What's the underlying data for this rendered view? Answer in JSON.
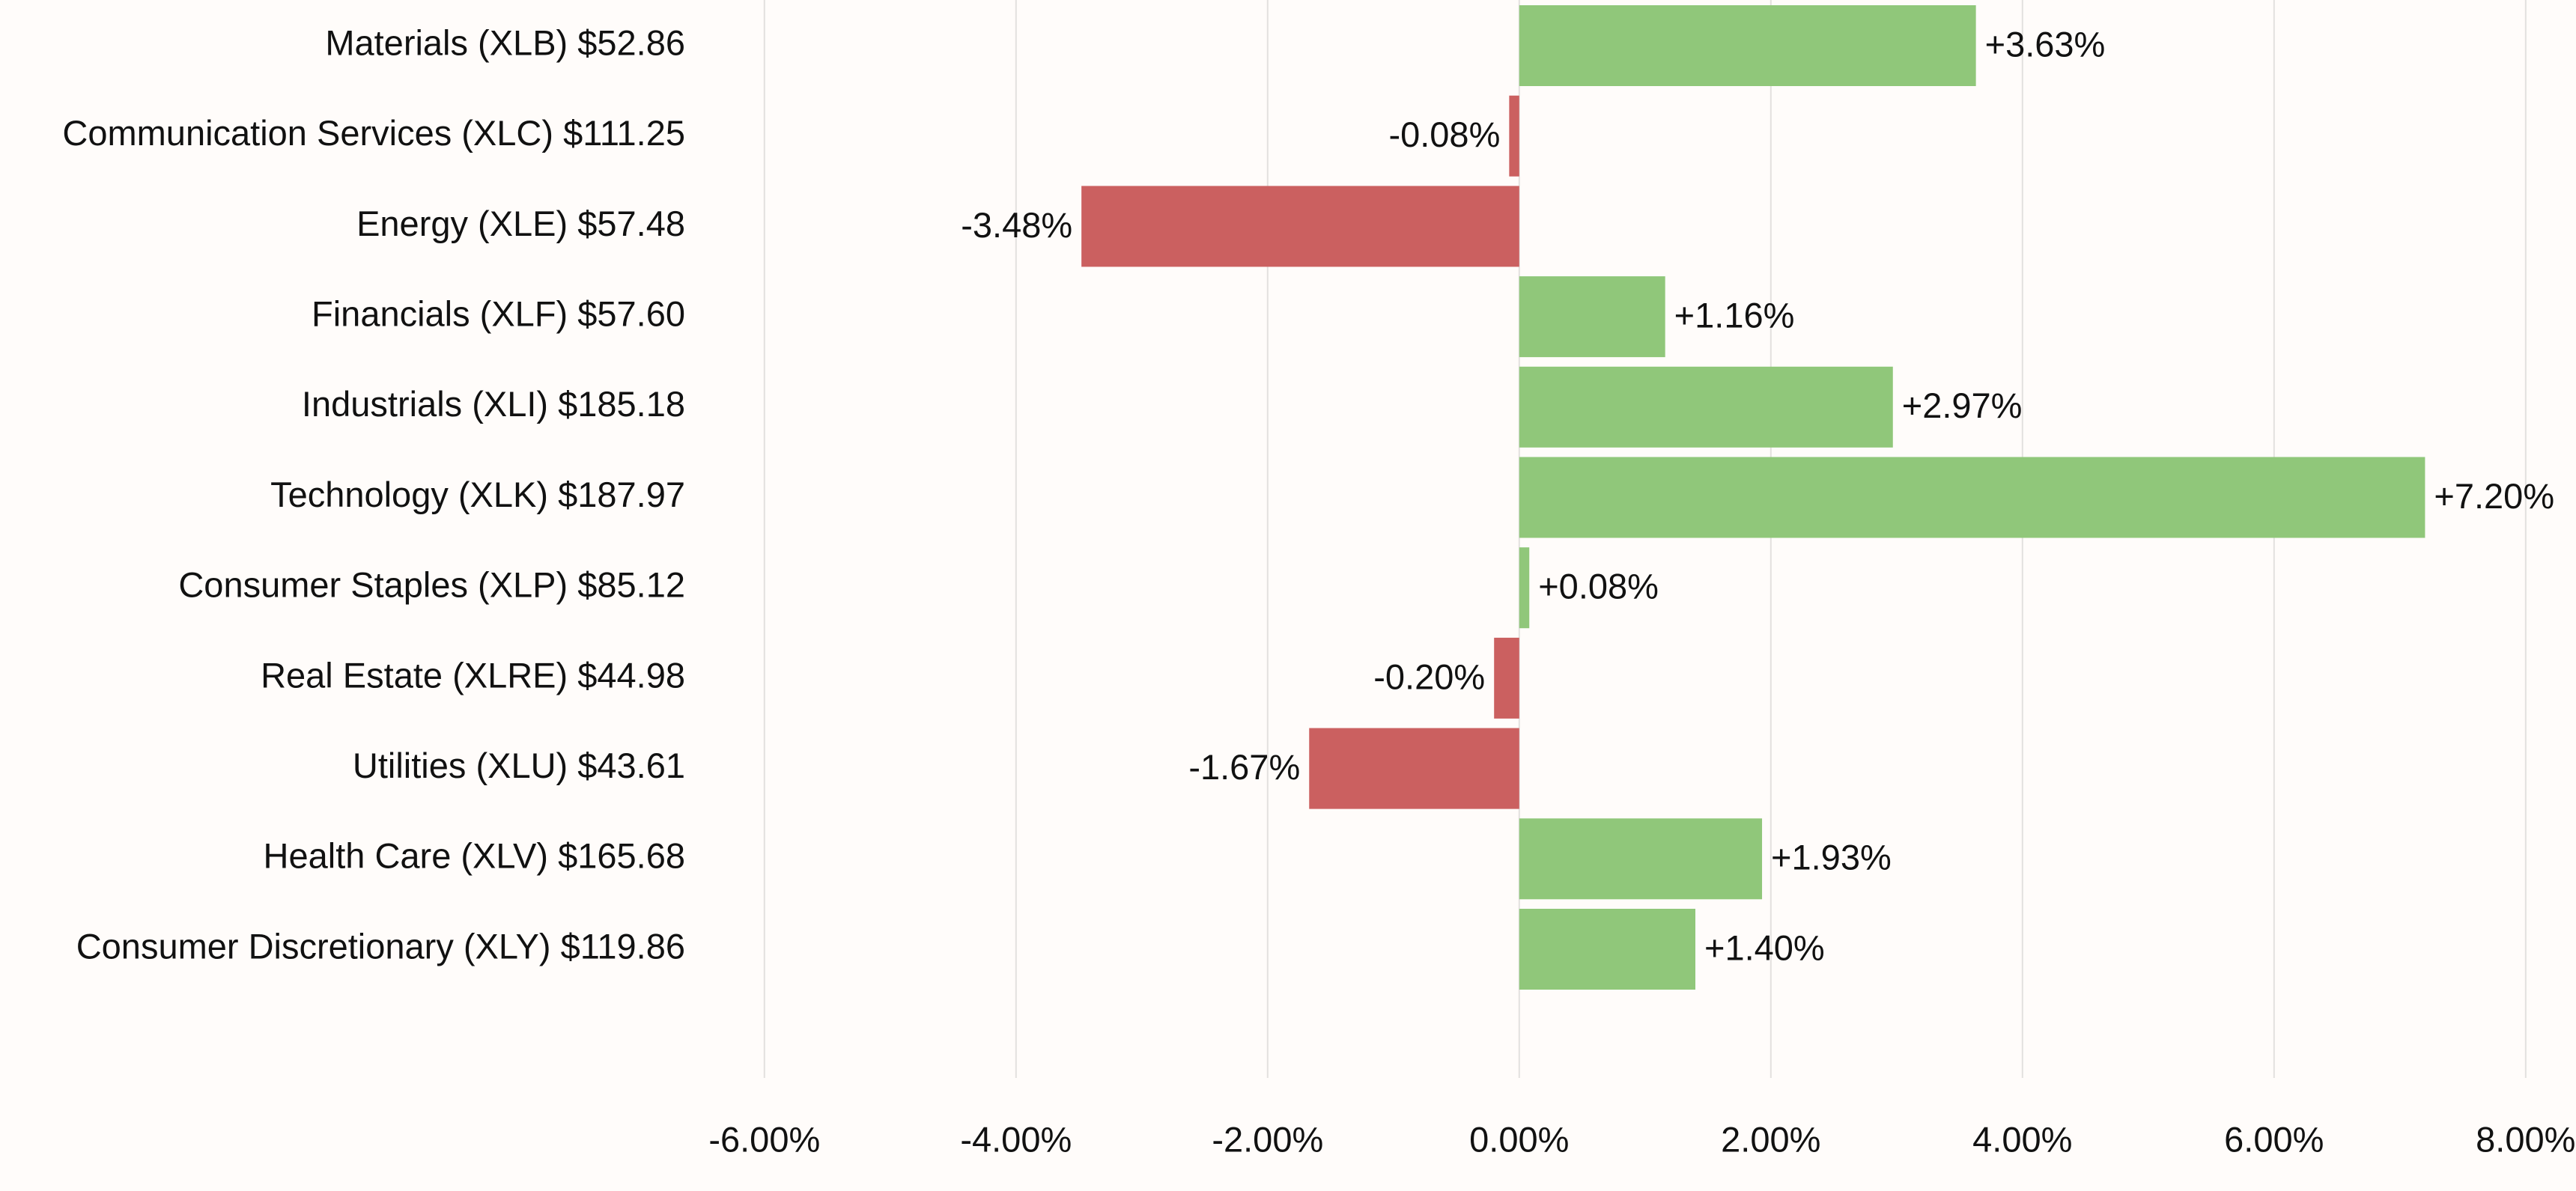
{
  "chart_data": {
    "type": "bar",
    "orientation": "horizontal",
    "title": "",
    "xlabel": "",
    "ylabel": "",
    "xlim": [
      -6.6,
      8.4
    ],
    "grid": "vertical",
    "legend": "none",
    "categories": [
      "Materials (XLB) $52.86",
      "Communication Services (XLC) $111.25",
      "Energy (XLE) $57.48",
      "Financials (XLF) $57.60",
      "Industrials (XLI) $185.18",
      "Technology (XLK) $187.97",
      "Consumer Staples (XLP) $85.12",
      "Real Estate (XLRE) $44.98",
      "Utilities (XLU) $43.61",
      "Health Care (XLV) $165.68",
      "Consumer Discretionary (XLY) $119.86"
    ],
    "values": [
      3.63,
      -0.08,
      -3.48,
      1.16,
      2.97,
      7.2,
      0.08,
      -0.2,
      -1.67,
      1.93,
      1.4
    ],
    "value_labels": [
      "+3.63%",
      "-0.08%",
      "-3.48%",
      "+1.16%",
      "+2.97%",
      "+7.20%",
      "+0.08%",
      "-0.20%",
      "-1.67%",
      "+1.93%",
      "+1.40%"
    ],
    "x_ticks": [
      -6,
      -4,
      -2,
      0,
      2,
      4,
      6,
      8
    ],
    "x_tick_labels": [
      "-6.00%",
      "-4.00%",
      "-2.00%",
      "0.00%",
      "2.00%",
      "4.00%",
      "6.00%",
      "8.00%"
    ],
    "colors": {
      "positive": "#90c77a",
      "negative": "#cb6060",
      "grid": "#e3e1df",
      "background": "#fffcfa"
    }
  }
}
